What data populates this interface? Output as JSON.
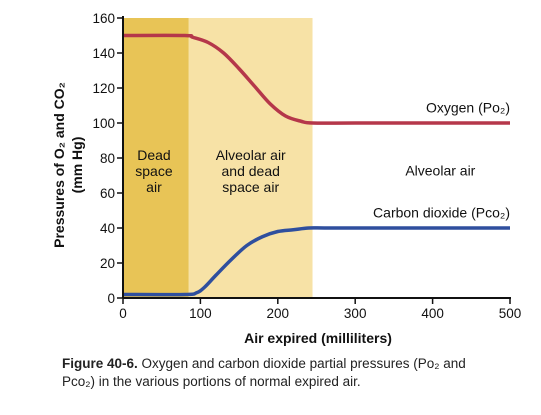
{
  "chart_data": {
    "type": "line",
    "xlabel": "Air expired (milliliters)",
    "ylabel_line1": "Pressures of O₂ and CO₂",
    "ylabel_line2": "(mm Hg)",
    "xlim": [
      0,
      500
    ],
    "ylim": [
      0,
      160
    ],
    "xticks": [
      0,
      100,
      200,
      300,
      400,
      500
    ],
    "yticks": [
      0,
      20,
      40,
      60,
      80,
      100,
      120,
      140,
      160
    ],
    "grid": false,
    "regions": [
      {
        "name": "dead-space",
        "label_lines": [
          "Dead",
          "space",
          "air"
        ],
        "x_start": 0,
        "x_end": 85,
        "color": "#e8c456"
      },
      {
        "name": "alveolar-dead",
        "label_lines": [
          "Alveolar air",
          "and dead",
          "space air"
        ],
        "x_start": 85,
        "x_end": 245,
        "color": "#f7e2a6"
      },
      {
        "name": "alveolar",
        "label_lines": [
          "Alveolar air"
        ],
        "x_start": 245,
        "x_end": 500,
        "color": "#ffffff"
      }
    ],
    "series": [
      {
        "name": "Oxygen (Po₂)",
        "color": "#b5374a",
        "x": [
          0,
          80,
          90,
          110,
          130,
          150,
          170,
          190,
          210,
          230,
          245,
          300,
          400,
          500
        ],
        "y": [
          150,
          150,
          149,
          146,
          140,
          131,
          121,
          111,
          104,
          101,
          100,
          100,
          100,
          100
        ]
      },
      {
        "name": "Carbon dioxide (Pco₂)",
        "color": "#2f4f9e",
        "x": [
          0,
          80,
          95,
          105,
          120,
          140,
          160,
          180,
          200,
          220,
          240,
          260,
          300,
          400,
          500
        ],
        "y": [
          2,
          2,
          3,
          6,
          13,
          22,
          30,
          35,
          38,
          39,
          40,
          40,
          40,
          40,
          40
        ]
      }
    ]
  },
  "caption": {
    "figure_label": "Figure 40-6.",
    "line1": "Oxygen and carbon dioxide partial pressures (Po₂ and",
    "line2": "Pco₂) in the various portions of normal expired air."
  }
}
